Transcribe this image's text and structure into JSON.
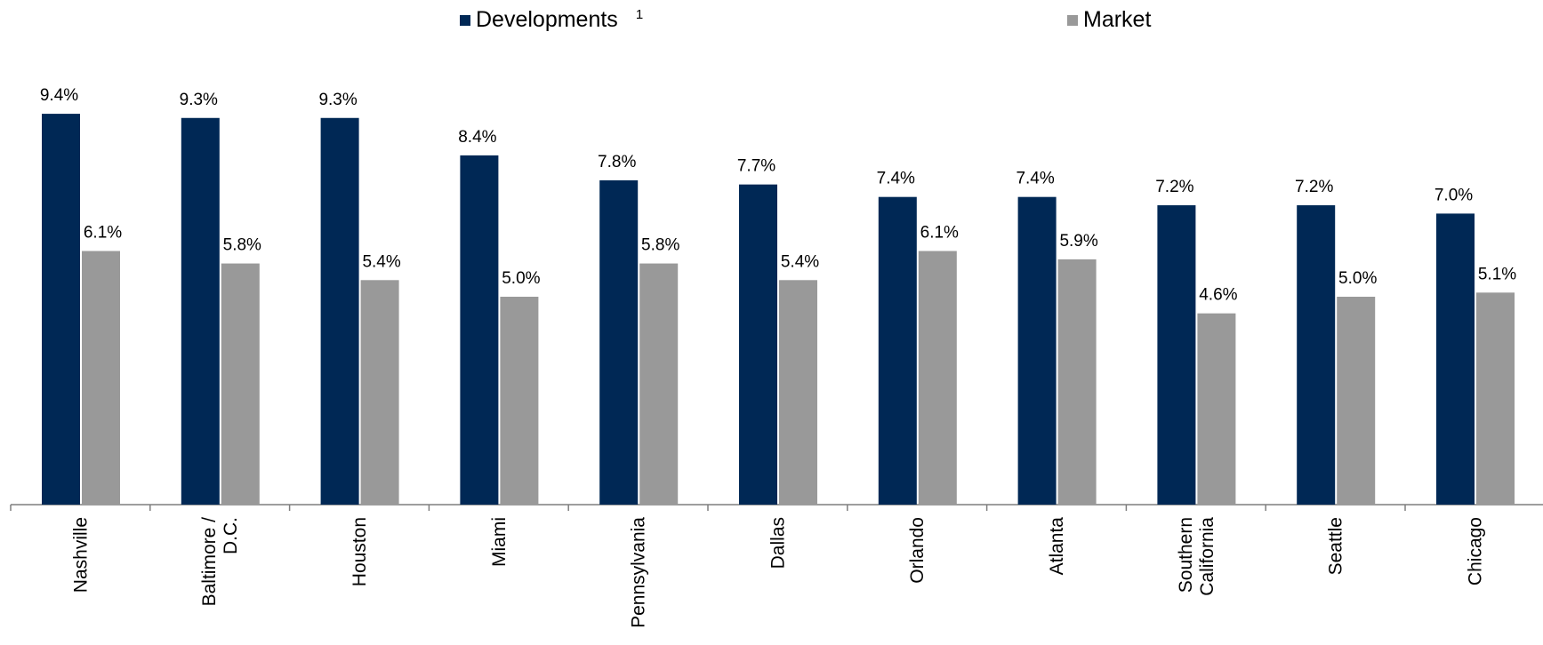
{
  "legend": {
    "developments_label": "Developments",
    "developments_footnote": "1",
    "market_label": "Market"
  },
  "colors": {
    "developments": "#002855",
    "market": "#999999",
    "axis": "#7f7f7f"
  },
  "chart_data": {
    "type": "bar",
    "categories": [
      [
        "Nashville"
      ],
      [
        "Baltimore /",
        "D.C."
      ],
      [
        "Houston"
      ],
      [
        "Miami"
      ],
      [
        "Pennsylvania"
      ],
      [
        "Dallas"
      ],
      [
        "Orlando"
      ],
      [
        "Atlanta"
      ],
      [
        "Southern",
        "California"
      ],
      [
        "Seattle"
      ],
      [
        "Chicago"
      ]
    ],
    "series": [
      {
        "name": "Developments",
        "values": [
          9.4,
          9.3,
          9.3,
          8.4,
          7.8,
          7.7,
          7.4,
          7.4,
          7.2,
          7.2,
          7.0
        ],
        "labels": [
          "9.4%",
          "9.3%",
          "9.3%",
          "8.4%",
          "7.8%",
          "7.7%",
          "7.4%",
          "7.4%",
          "7.2%",
          "7.2%",
          "7.0%"
        ]
      },
      {
        "name": "Market",
        "values": [
          6.1,
          5.8,
          5.4,
          5.0,
          5.8,
          5.4,
          6.1,
          5.9,
          4.6,
          5.0,
          5.1
        ],
        "labels": [
          "6.1%",
          "5.8%",
          "5.4%",
          "5.0%",
          "5.8%",
          "5.4%",
          "6.1%",
          "5.9%",
          "4.6%",
          "5.0%",
          "5.1%"
        ]
      }
    ],
    "ylim": [
      0,
      10
    ],
    "grid": false,
    "legend_position": "top"
  }
}
